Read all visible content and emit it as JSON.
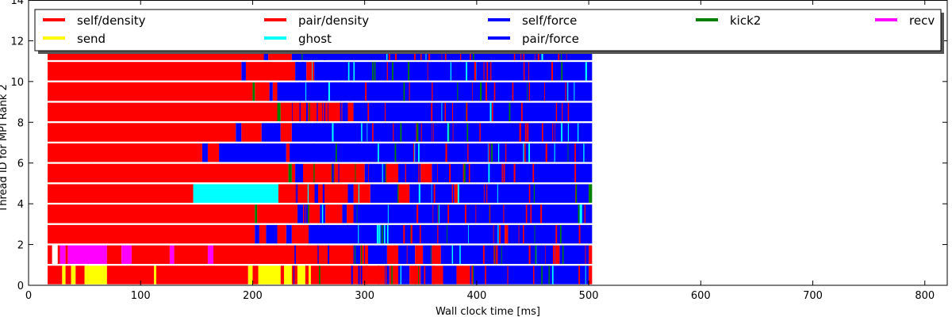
{
  "chart_data": {
    "type": "timeline",
    "xlabel": "Wall clock time [ms]",
    "ylabel": "Thread ID for MPI Rank 2",
    "xlim": [
      0,
      820
    ],
    "ylim": [
      0,
      14
    ],
    "xticks": [
      0,
      100,
      200,
      300,
      400,
      500,
      600,
      700,
      800
    ],
    "yticks": [
      0,
      2,
      4,
      6,
      8,
      10,
      12,
      14
    ],
    "legend_position": "top",
    "legend": [
      {
        "label": "self/density",
        "color": "#ff0000"
      },
      {
        "label": "pair/density",
        "color": "#ff0000"
      },
      {
        "label": "self/force",
        "color": "#0000ff"
      },
      {
        "label": "kick2",
        "color": "#008000"
      },
      {
        "label": "recv",
        "color": "#ff00ff"
      },
      {
        "label": "send",
        "color": "#ffff00"
      },
      {
        "label": "ghost",
        "color": "#00ffff"
      },
      {
        "label": "pair/force",
        "color": "#0000ff"
      }
    ],
    "colors": {
      "red": "#ff0000",
      "blue": "#0000ff",
      "yellow": "#ffff00",
      "cyan": "#00ffff",
      "magenta": "#ff00ff",
      "green": "#008000"
    },
    "threads": [
      {
        "thread": 0,
        "segments": [
          [
            "red",
            17,
            30
          ],
          [
            "yellow",
            30,
            33
          ],
          [
            "red",
            33,
            38
          ],
          [
            "yellow",
            38,
            42
          ],
          [
            "red",
            42,
            50
          ],
          [
            "yellow",
            50,
            70
          ],
          [
            "red",
            70,
            112
          ],
          [
            "yellow",
            112,
            114
          ],
          [
            "red",
            114,
            196
          ],
          [
            "yellow",
            196,
            200
          ],
          [
            "red",
            200,
            205
          ],
          [
            "yellow",
            205,
            225
          ],
          [
            "red",
            225,
            228
          ],
          [
            "yellow",
            228,
            235
          ],
          [
            "red",
            235,
            240
          ],
          [
            "yellow",
            240,
            247
          ],
          [
            "red",
            247,
            250
          ],
          [
            "yellow",
            250,
            252
          ],
          [
            "red",
            252,
            318
          ],
          [
            "blue",
            318,
            322
          ],
          [
            "red",
            322,
            330
          ],
          [
            "blue",
            330,
            340
          ],
          [
            "red",
            340,
            350
          ],
          [
            "blue",
            350,
            360
          ],
          [
            "red",
            360,
            370
          ],
          [
            "blue",
            370,
            382
          ],
          [
            "red",
            382,
            394
          ],
          [
            "blue",
            394,
            500
          ],
          [
            "red",
            500,
            503
          ]
        ]
      },
      {
        "thread": 1,
        "segments": [
          [
            "red",
            17,
            21
          ],
          [
            "red",
            26,
            28
          ],
          [
            "magenta",
            28,
            33
          ],
          [
            "red",
            33,
            35
          ],
          [
            "magenta",
            35,
            70
          ],
          [
            "red",
            70,
            83
          ],
          [
            "magenta",
            83,
            92
          ],
          [
            "red",
            92,
            126
          ],
          [
            "magenta",
            126,
            130
          ],
          [
            "red",
            130,
            160
          ],
          [
            "magenta",
            160,
            165
          ],
          [
            "red",
            165,
            290
          ],
          [
            "blue",
            290,
            296
          ],
          [
            "red",
            296,
            302
          ],
          [
            "blue",
            302,
            320
          ],
          [
            "red",
            320,
            330
          ],
          [
            "blue",
            330,
            345
          ],
          [
            "red",
            345,
            352
          ],
          [
            "blue",
            352,
            360
          ],
          [
            "red",
            360,
            368
          ],
          [
            "blue",
            368,
            470
          ],
          [
            "red",
            470,
            474
          ],
          [
            "blue",
            474,
            500
          ],
          [
            "red",
            500,
            503
          ]
        ]
      },
      {
        "thread": 2,
        "segments": [
          [
            "red",
            17,
            202
          ],
          [
            "blue",
            202,
            206
          ],
          [
            "red",
            206,
            212
          ],
          [
            "blue",
            212,
            222
          ],
          [
            "red",
            222,
            230
          ],
          [
            "blue",
            230,
            235
          ],
          [
            "red",
            235,
            250
          ],
          [
            "blue",
            250,
            425
          ],
          [
            "red",
            425,
            428
          ],
          [
            "blue",
            428,
            503
          ]
        ]
      },
      {
        "thread": 3,
        "segments": [
          [
            "red",
            17,
            202
          ],
          [
            "green",
            202,
            204
          ],
          [
            "red",
            204,
            240
          ],
          [
            "blue",
            240,
            245
          ],
          [
            "red",
            245,
            260
          ],
          [
            "blue",
            260,
            265
          ],
          [
            "red",
            265,
            280
          ],
          [
            "blue",
            280,
            284
          ],
          [
            "red",
            284,
            290
          ],
          [
            "blue",
            290,
            503
          ]
        ]
      },
      {
        "thread": 4,
        "segments": [
          [
            "red",
            17,
            147
          ],
          [
            "cyan",
            147,
            223
          ],
          [
            "red",
            223,
            285
          ],
          [
            "blue",
            285,
            290
          ],
          [
            "red",
            290,
            305
          ],
          [
            "blue",
            305,
            330
          ],
          [
            "red",
            330,
            340
          ],
          [
            "blue",
            340,
            380
          ],
          [
            "red",
            380,
            384
          ],
          [
            "blue",
            384,
            500
          ],
          [
            "green",
            500,
            503
          ]
        ]
      },
      {
        "thread": 5,
        "segments": [
          [
            "red",
            17,
            232
          ],
          [
            "green",
            232,
            235
          ],
          [
            "red",
            235,
            238
          ],
          [
            "blue",
            238,
            245
          ],
          [
            "red",
            245,
            300
          ],
          [
            "blue",
            300,
            320
          ],
          [
            "red",
            320,
            330
          ],
          [
            "blue",
            330,
            350
          ],
          [
            "red",
            350,
            360
          ],
          [
            "blue",
            360,
            503
          ]
        ]
      },
      {
        "thread": 6,
        "segments": [
          [
            "red",
            17,
            155
          ],
          [
            "blue",
            155,
            160
          ],
          [
            "red",
            160,
            170
          ],
          [
            "blue",
            170,
            230
          ],
          [
            "red",
            230,
            233
          ],
          [
            "blue",
            233,
            503
          ]
        ]
      },
      {
        "thread": 7,
        "segments": [
          [
            "red",
            17,
            185
          ],
          [
            "blue",
            185,
            190
          ],
          [
            "red",
            190,
            208
          ],
          [
            "blue",
            208,
            225
          ],
          [
            "red",
            225,
            235
          ],
          [
            "blue",
            235,
            503
          ]
        ]
      },
      {
        "thread": 8,
        "segments": [
          [
            "red",
            17,
            222
          ],
          [
            "green",
            222,
            225
          ],
          [
            "red",
            225,
            280
          ],
          [
            "blue",
            280,
            285
          ],
          [
            "red",
            285,
            290
          ],
          [
            "blue",
            290,
            503
          ]
        ]
      },
      {
        "thread": 9,
        "segments": [
          [
            "red",
            17,
            200
          ],
          [
            "green",
            200,
            202
          ],
          [
            "red",
            202,
            215
          ],
          [
            "blue",
            215,
            218
          ],
          [
            "red",
            218,
            222
          ],
          [
            "blue",
            222,
            503
          ]
        ]
      },
      {
        "thread": 10,
        "segments": [
          [
            "red",
            17,
            190
          ],
          [
            "blue",
            190,
            194
          ],
          [
            "red",
            194,
            238
          ],
          [
            "blue",
            238,
            248
          ],
          [
            "red",
            248,
            255
          ],
          [
            "blue",
            255,
            503
          ]
        ]
      },
      {
        "thread": 11,
        "segments": [
          [
            "red",
            17,
            210
          ],
          [
            "blue",
            210,
            214
          ],
          [
            "red",
            214,
            235
          ],
          [
            "blue",
            235,
            503
          ]
        ]
      }
    ],
    "stripes": {
      "blue": [],
      "red": [],
      "green": [],
      "cyan": []
    }
  }
}
